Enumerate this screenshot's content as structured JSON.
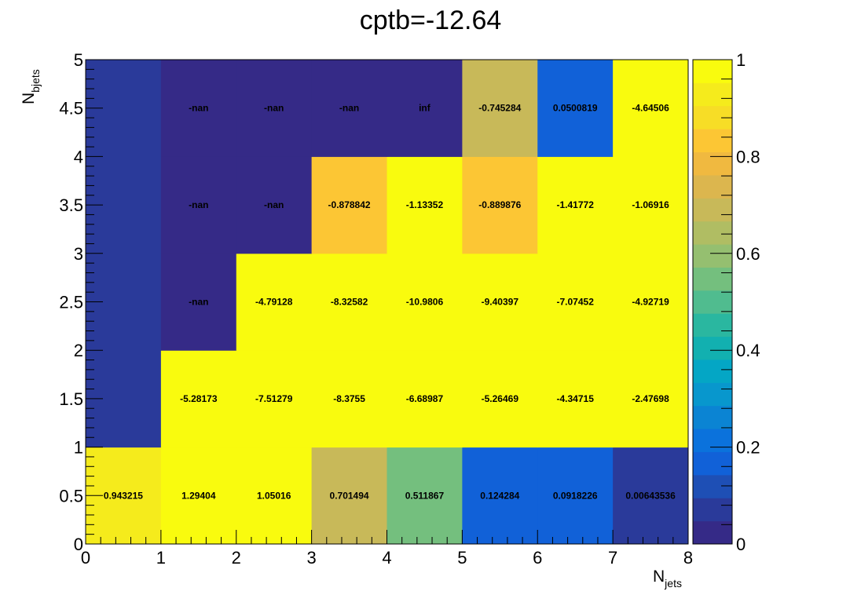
{
  "chart_data": {
    "type": "heatmap",
    "title": "cptb=-12.64",
    "xlabel": {
      "main": "N",
      "sub": "jets"
    },
    "ylabel": {
      "main": "N",
      "sub": "bjets"
    },
    "xlim": [
      0,
      8
    ],
    "ylim": [
      0,
      5
    ],
    "zlim": [
      0,
      1
    ],
    "x_ticks": [
      "0",
      "1",
      "2",
      "3",
      "4",
      "5",
      "6",
      "7",
      "8"
    ],
    "y_ticks": [
      "0",
      "0.5",
      "1",
      "1.5",
      "2",
      "2.5",
      "3",
      "3.5",
      "4",
      "4.5",
      "5"
    ],
    "z_ticks": [
      "0",
      "0.2",
      "0.4",
      "0.6",
      "0.8",
      "1"
    ],
    "palette": [
      "#352a87",
      "#2a3a9a",
      "#1e4fb5",
      "#1161d8",
      "#0b72dc",
      "#0b84d3",
      "#0897cd",
      "#04a6c5",
      "#12b0b0",
      "#2ab7a0",
      "#50bc8f",
      "#74bf7e",
      "#95bf70",
      "#b0bd63",
      "#c8b959",
      "#dcb64e",
      "#f0b940",
      "#fcc634",
      "#f7dd26",
      "#f5eb1c",
      "#f9fb0e"
    ],
    "rows": [
      {
        "y": 0.5,
        "fill": [
          0.96,
          1.0,
          1.0,
          0.71,
          0.53,
          0.14,
          0.14,
          0.06
        ],
        "labels": [
          "0.943215",
          "1.29404",
          "1.05016",
          "0.701494",
          "0.511867",
          "0.124284",
          "0.0918226",
          "0.00643536"
        ]
      },
      {
        "y": 1.5,
        "fill": [
          0.06,
          1.0,
          1.0,
          1.0,
          1.0,
          1.0,
          1.0,
          1.0
        ],
        "labels": [
          "",
          "-5.28173",
          "-7.51279",
          "-8.3755",
          "-6.68987",
          "-5.26469",
          "-4.34715",
          "-2.47698"
        ]
      },
      {
        "y": 2.5,
        "fill": [
          0.06,
          0.0,
          1.0,
          1.0,
          1.0,
          1.0,
          1.0,
          1.0
        ],
        "labels": [
          "",
          "-nan",
          "-4.79128",
          "-8.32582",
          "-10.9806",
          "-9.40397",
          "-7.07452",
          "-4.92719"
        ]
      },
      {
        "y": 3.5,
        "fill": [
          0.06,
          0.0,
          0.0,
          0.86,
          1.0,
          0.86,
          1.0,
          1.0
        ],
        "labels": [
          "",
          "-nan",
          "-nan",
          "-0.878842",
          "-1.13352",
          "-0.889876",
          "-1.41772",
          "-1.06916"
        ]
      },
      {
        "y": 4.5,
        "fill": [
          0.06,
          0.0,
          0.0,
          0.0,
          0.0,
          0.72,
          0.14,
          1.0
        ],
        "labels": [
          "",
          "-nan",
          "-nan",
          "-nan",
          "inf",
          "-0.745284",
          "0.0500819",
          "-4.64506"
        ]
      }
    ]
  }
}
